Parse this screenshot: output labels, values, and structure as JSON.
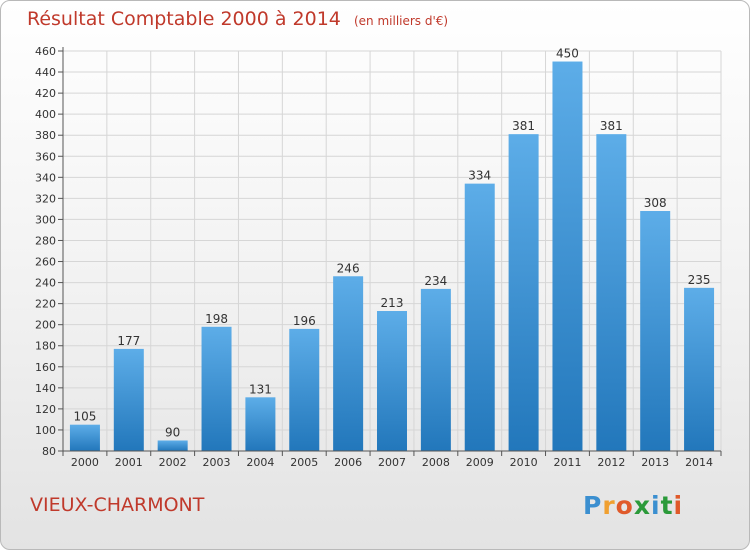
{
  "title": "Résultat Comptable 2000 à 2014",
  "unit_note": "(en milliers d'€)",
  "town": "VIEUX-CHARMONT",
  "brand": {
    "text": "Proxiti",
    "letters": [
      "P",
      "r",
      "o",
      "x",
      "i",
      "t",
      "i"
    ],
    "colors": [
      "#3b8fd0",
      "#f0a030",
      "#e05a2a",
      "#2b9a3a",
      "#3b8fd0",
      "#2b9a3a",
      "#e05a2a"
    ]
  },
  "colors": {
    "bar_top": "#5dade8",
    "bar_bottom": "#2277bb",
    "title": "#c0392b"
  },
  "chart_data": {
    "type": "bar",
    "title": "Résultat Comptable 2000 à 2014",
    "subtitle": "(en milliers d'€)",
    "categories": [
      "2000",
      "2001",
      "2002",
      "2003",
      "2004",
      "2005",
      "2006",
      "2007",
      "2008",
      "2009",
      "2010",
      "2011",
      "2012",
      "2013",
      "2014"
    ],
    "values": [
      105,
      177,
      90,
      198,
      131,
      196,
      246,
      213,
      234,
      334,
      381,
      450,
      381,
      308,
      235
    ],
    "ylim": [
      80,
      460
    ],
    "yticks": [
      80,
      100,
      120,
      140,
      160,
      180,
      200,
      220,
      240,
      260,
      280,
      300,
      320,
      340,
      360,
      380,
      400,
      420,
      440,
      460
    ],
    "grid": true
  }
}
